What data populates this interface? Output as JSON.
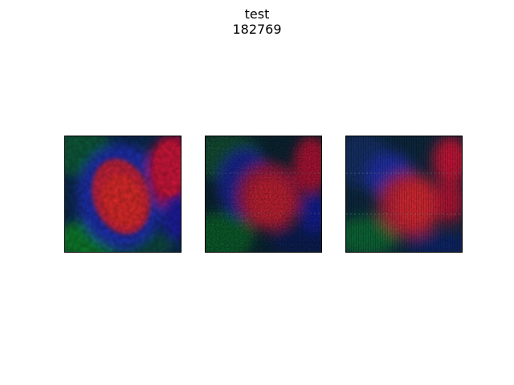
{
  "figure": {
    "title_line1": "test",
    "title_line2": "182769"
  },
  "panels": [
    {
      "name": "panel-input",
      "style": "smooth"
    },
    {
      "name": "panel-prediction-a",
      "style": "noisy"
    },
    {
      "name": "panel-prediction-b",
      "style": "blocky"
    }
  ]
}
